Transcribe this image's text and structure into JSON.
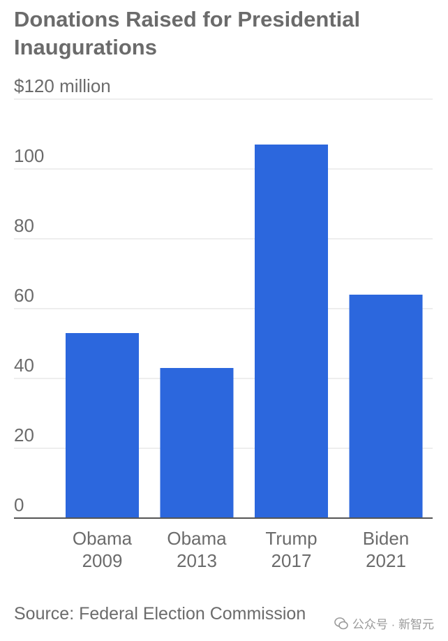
{
  "title": "Donations Raised for Presidential Inaugurations",
  "source": "Source: Federal Election Commission",
  "watermark": "公众号 · 新智元",
  "colors": {
    "bar": "#2c67dd",
    "grid": "#e3e3e3",
    "axis": "#555555",
    "text": "#6b6b6b"
  },
  "chart_data": {
    "type": "bar",
    "title": "Donations Raised for Presidential Inaugurations",
    "categories": [
      [
        "Obama",
        "2009"
      ],
      [
        "Obama",
        "2013"
      ],
      [
        "Trump",
        "2017"
      ],
      [
        "Biden",
        "2021"
      ]
    ],
    "values": [
      53,
      43,
      107,
      64
    ],
    "y_ticks": [
      {
        "value": 0,
        "label": "0"
      },
      {
        "value": 20,
        "label": "20"
      },
      {
        "value": 40,
        "label": "40"
      },
      {
        "value": 60,
        "label": "60"
      },
      {
        "value": 80,
        "label": "80"
      },
      {
        "value": 100,
        "label": "100"
      },
      {
        "value": 120,
        "label": "$120 million"
      }
    ],
    "ylim": [
      0,
      120
    ],
    "grid": true,
    "legend": "none"
  }
}
